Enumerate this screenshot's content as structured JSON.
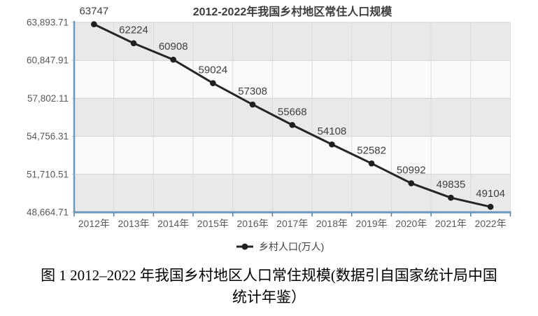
{
  "chart": {
    "colors": {
      "axis": "#6a98bc",
      "axis_dark": "#54809f",
      "band": "#e9e9e9",
      "band_alt": "#fafafa",
      "grid_v": "#dcdcdc",
      "grid_h": "#d2d2d2",
      "line": "#262626",
      "marker": "#1f1f1f",
      "value_label": "#404040",
      "tick_label": "#595959",
      "title": "#3d3d3d"
    }
  },
  "chart_data": {
    "type": "line",
    "title": "2012-2022年我国乡村地区常住人口规模",
    "categories": [
      "2012年",
      "2013年",
      "2014年",
      "2015年",
      "2016年",
      "2017年",
      "2018年",
      "2019年",
      "2020年",
      "2021年",
      "2022年"
    ],
    "series": [
      {
        "name": "乡村人口(万人)",
        "values": [
          63747,
          62224,
          60908,
          59024,
          57308,
          55668,
          54108,
          52582,
          50992,
          49835,
          49104
        ]
      }
    ],
    "y_ticks": [
      63893.71,
      60847.91,
      57802.11,
      54756.31,
      51710.51,
      48664.71
    ],
    "y_tick_labels": [
      "63,893.71",
      "60,847.91",
      "57,802.11",
      "54,756.31",
      "51,710.51",
      "48,664.71"
    ],
    "ylim": [
      48664.71,
      63893.71
    ],
    "grid": true,
    "legend_position": "bottom",
    "xlabel": "",
    "ylabel": ""
  },
  "legend": {
    "label": "乡村人口(万人)"
  },
  "caption": {
    "line1": "图 1 2012–2022 年我国乡村地区人口常住规模(数据引自国家统计局中国",
    "line2": "统计年鉴）"
  }
}
